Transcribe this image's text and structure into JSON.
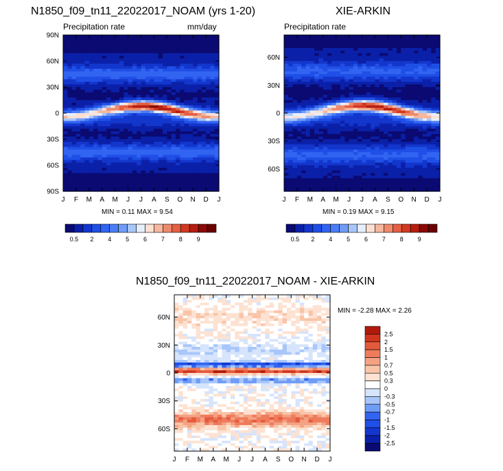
{
  "chart_data": [
    {
      "type": "heatmap",
      "title": "N1850_f09_tn11_22022017_NOAM (yrs 1-20)",
      "left_subtitle": "Precipitation rate",
      "right_subtitle": "mm/day",
      "stats_text": "MIN =  0.11 MAX =  9.54",
      "min": 0.11,
      "max": 9.54,
      "x_tick_labels": [
        "J",
        "F",
        "M",
        "A",
        "M",
        "J",
        "J",
        "A",
        "S",
        "O",
        "N",
        "D",
        "J"
      ],
      "y_tick_labels": [
        "90N",
        "60N",
        "30N",
        "0",
        "30S",
        "60S",
        "90S"
      ],
      "ylim": [
        -90,
        90
      ],
      "colorbar_labels": [
        "0.5",
        "2",
        "4",
        "5",
        "6",
        "7",
        "8",
        "9"
      ]
    },
    {
      "type": "heatmap",
      "title": "XIE-ARKIN",
      "left_subtitle": "Precipitation rate",
      "stats_text": "MIN =  0.19 MAX =  9.15",
      "min": 0.19,
      "max": 9.15,
      "x_tick_labels": [
        "J",
        "F",
        "M",
        "A",
        "M",
        "J",
        "J",
        "A",
        "S",
        "O",
        "N",
        "D",
        "J"
      ],
      "y_tick_labels": [
        "60N",
        "30N",
        "0",
        "30S",
        "60S"
      ],
      "ylim": [
        -84,
        84
      ],
      "colorbar_labels": [
        "0.5",
        "2",
        "4",
        "5",
        "6",
        "7",
        "8",
        "9"
      ]
    },
    {
      "type": "heatmap",
      "title": "N1850_f09_tn11_22022017_NOAM - XIE-ARKIN",
      "stats_text": "MIN = -2.28 MAX =  2.26",
      "min": -2.28,
      "max": 2.26,
      "x_tick_labels": [
        "J",
        "F",
        "M",
        "A",
        "M",
        "J",
        "J",
        "A",
        "S",
        "O",
        "N",
        "D",
        "J"
      ],
      "y_tick_labels": [
        "60N",
        "30N",
        "0",
        "30S",
        "60S"
      ],
      "ylim": [
        -84,
        84
      ],
      "colorbar_labels": [
        "2.5",
        "2",
        "1.5",
        "1",
        "0.7",
        "0.5",
        "0.3",
        "0",
        "-0.3",
        "-0.5",
        "-0.7",
        "-1",
        "-1.5",
        "-2",
        "-2.5"
      ]
    }
  ],
  "colors": {
    "precip_scale": [
      "#0a0a72",
      "#0b20a8",
      "#1336cc",
      "#1f4fe6",
      "#3264f2",
      "#4a7df6",
      "#6f9cf7",
      "#a8c6fa",
      "#e6eefc",
      "#fbe0d2",
      "#f5b79e",
      "#ee8a6c",
      "#e45f44",
      "#d13a22",
      "#b61e10",
      "#8a0a06",
      "#6b0000"
    ],
    "diff_scale": [
      "#0a0a72",
      "#0b20a8",
      "#1336cc",
      "#1f4fe6",
      "#3264f2",
      "#6f9cf7",
      "#a8c6fa",
      "#d6e4fc",
      "#ffffff",
      "#fde2d2",
      "#f9c4a8",
      "#f4a283",
      "#ee7c5c",
      "#e45a3c",
      "#d0361e",
      "#b01a0c",
      "#7a0404"
    ]
  }
}
